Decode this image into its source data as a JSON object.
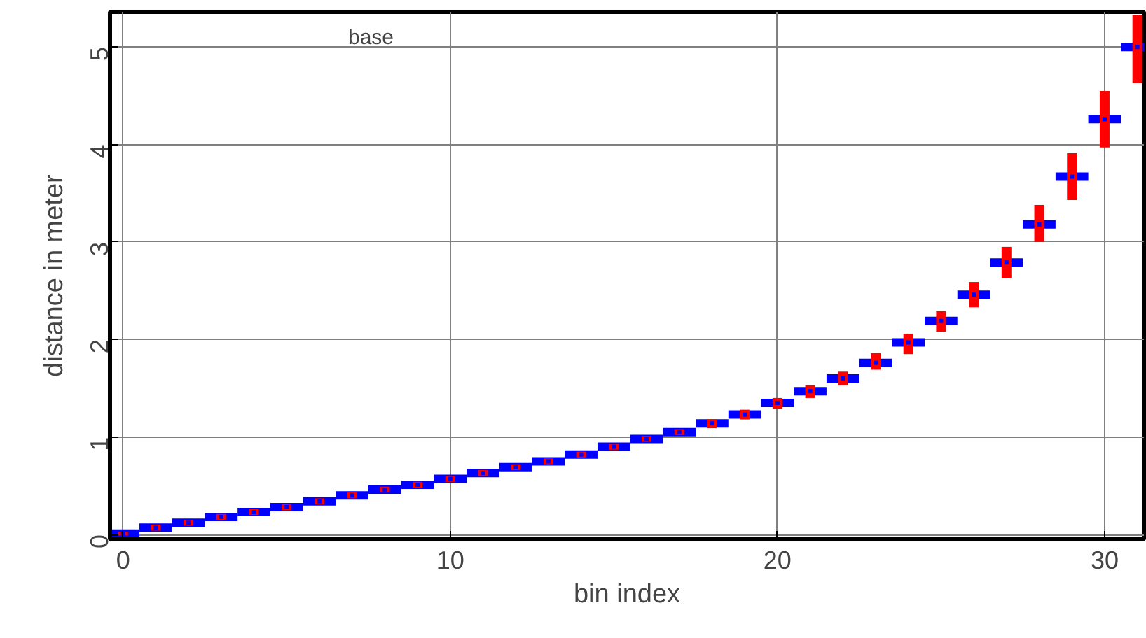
{
  "chart_data": {
    "type": "scatter",
    "xlabel": "bin index",
    "ylabel": "distance in meter",
    "x": [
      0,
      1,
      2,
      3,
      4,
      5,
      6,
      7,
      8,
      9,
      10,
      11,
      12,
      13,
      14,
      15,
      16,
      17,
      18,
      19,
      20,
      21,
      22,
      23,
      24,
      25,
      26,
      27,
      28,
      29,
      30,
      31
    ],
    "series": [
      {
        "color": "#0000ff",
        "values": [
          0.01,
          0.07,
          0.12,
          0.18,
          0.23,
          0.28,
          0.34,
          0.4,
          0.46,
          0.51,
          0.57,
          0.63,
          0.69,
          0.75,
          0.82,
          0.9,
          0.98,
          1.05,
          1.14,
          1.23,
          1.35,
          1.47,
          1.6,
          1.76,
          1.97,
          2.19,
          2.46,
          2.79,
          3.18,
          3.67,
          4.26,
          5.0
        ],
        "xerrors": [
          0.5,
          0.5,
          0.5,
          0.5,
          0.5,
          0.5,
          0.5,
          0.5,
          0.5,
          0.5,
          0.5,
          0.5,
          0.5,
          0.5,
          0.5,
          0.5,
          0.5,
          0.5,
          0.5,
          0.5,
          0.5,
          0.5,
          0.5,
          0.5,
          0.5,
          0.5,
          0.5,
          0.5,
          0.5,
          0.5,
          0.5,
          0.5
        ],
        "errors": [
          0.02,
          0.03,
          0.03,
          0.03,
          0.03,
          0.03,
          0.03,
          0.03,
          0.03,
          0.03,
          0.03,
          0.03,
          0.03,
          0.03,
          0.03,
          0.03,
          0.03,
          0.03,
          [
            1.09,
            1.18
          ],
          [
            1.18,
            1.28
          ],
          [
            1.29,
            1.4
          ],
          [
            1.4,
            1.53
          ],
          [
            1.53,
            1.67
          ],
          [
            1.69,
            1.86
          ],
          [
            1.85,
            2.06
          ],
          [
            2.08,
            2.29
          ],
          [
            2.33,
            2.59
          ],
          [
            2.63,
            2.95
          ],
          [
            3.0,
            3.38
          ],
          [
            3.43,
            3.91
          ],
          [
            3.97,
            4.55
          ],
          [
            4.63,
            5.33
          ]
        ]
      }
    ],
    "xlim": [
      -0.4,
      31.2
    ],
    "ylim": [
      -0.05,
      5.36
    ],
    "xticks": [
      0,
      10,
      20,
      30
    ],
    "yticks": [
      0,
      1,
      2,
      3,
      4,
      5
    ],
    "grid": true,
    "marker": "square",
    "annotations": [
      "base"
    ]
  }
}
